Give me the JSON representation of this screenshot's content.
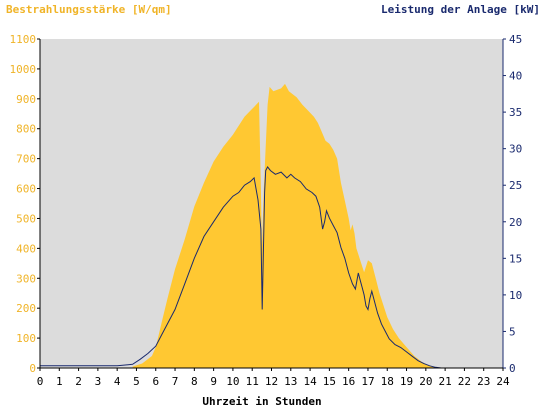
{
  "chart_data": {
    "type": "area",
    "left_axis_title": "Bestrahlungsstärke [W/qm]",
    "right_axis_title": "Leistung der Anlage [kW]",
    "xlabel": "Uhrzeit in Stunden",
    "xlim": [
      0,
      24
    ],
    "ylim_left": [
      0,
      1100
    ],
    "ylim_right": [
      0,
      45
    ],
    "x_ticks": [
      "0",
      "1",
      "2",
      "3",
      "4",
      "5",
      "6",
      "7",
      "8",
      "9",
      "10",
      "11",
      "12",
      "13",
      "14",
      "15",
      "16",
      "17",
      "18",
      "19",
      "20",
      "21",
      "22",
      "23",
      "24"
    ],
    "left_ticks": [
      "0",
      "100",
      "200",
      "300",
      "400",
      "500",
      "600",
      "700",
      "800",
      "900",
      "1000",
      "1100"
    ],
    "right_ticks": [
      "0",
      "5",
      "10",
      "15",
      "20",
      "25",
      "30",
      "35",
      "40",
      "45"
    ],
    "grid": false,
    "colors": {
      "plot_bg": "#dcdcdc",
      "irradiance_fill": "#ffc832",
      "power_line": "#1a2a6e",
      "left_axis": "#f0b428",
      "right_axis": "#1a2a6e"
    },
    "series": [
      {
        "axis": "left",
        "style": "area",
        "x": [
          4.8,
          5.3,
          5.8,
          6.0,
          6.3,
          6.6,
          7.0,
          7.5,
          8.0,
          8.5,
          9.0,
          9.5,
          10.0,
          10.3,
          10.6,
          10.9,
          11.2,
          11.35,
          11.45,
          11.5,
          11.6,
          11.8,
          11.9,
          12.1,
          12.3,
          12.5,
          12.7,
          12.9,
          13.1,
          13.3,
          13.6,
          13.9,
          14.2,
          14.4,
          14.6,
          14.8,
          15.0,
          15.2,
          15.4,
          15.6,
          15.8,
          16.0,
          16.1,
          16.2,
          16.3,
          16.4,
          16.5,
          16.6,
          16.8,
          17.0,
          17.2,
          17.4,
          17.6,
          17.8,
          18.0,
          18.3,
          18.6,
          19.0,
          19.4,
          19.8,
          20.1,
          20.4,
          20.7
        ],
        "y": [
          5,
          15,
          40,
          70,
          150,
          230,
          330,
          430,
          540,
          620,
          690,
          740,
          780,
          810,
          840,
          860,
          880,
          890,
          600,
          400,
          600,
          880,
          940,
          925,
          930,
          935,
          950,
          925,
          915,
          905,
          880,
          860,
          840,
          820,
          790,
          760,
          750,
          730,
          700,
          620,
          560,
          500,
          460,
          480,
          450,
          400,
          380,
          360,
          320,
          360,
          350,
          300,
          250,
          210,
          170,
          130,
          100,
          70,
          40,
          20,
          10,
          3,
          0
        ]
      },
      {
        "axis": "right",
        "style": "line",
        "x": [
          0.0,
          4.0,
          4.8,
          5.2,
          5.6,
          6.0,
          6.3,
          6.6,
          7.0,
          7.5,
          8.0,
          8.5,
          9.0,
          9.5,
          10.0,
          10.3,
          10.6,
          10.9,
          11.1,
          11.3,
          11.45,
          11.52,
          11.58,
          11.64,
          11.7,
          11.8,
          11.95,
          12.2,
          12.5,
          12.8,
          13.0,
          13.2,
          13.5,
          13.8,
          14.1,
          14.3,
          14.5,
          14.65,
          14.75,
          14.85,
          15.0,
          15.2,
          15.4,
          15.6,
          15.8,
          16.0,
          16.2,
          16.35,
          16.5,
          16.6,
          16.7,
          16.8,
          16.9,
          17.0,
          17.1,
          17.2,
          17.35,
          17.5,
          17.7,
          17.9,
          18.1,
          18.4,
          18.7,
          19.0,
          19.3,
          19.6,
          19.9,
          20.2,
          20.5,
          20.8,
          24.0
        ],
        "y": [
          0.3,
          0.3,
          0.5,
          1.2,
          2.0,
          3.0,
          4.5,
          6.0,
          8.0,
          11.5,
          15.0,
          18.0,
          20.0,
          22.0,
          23.5,
          24.0,
          25.0,
          25.5,
          26.0,
          23.0,
          19.0,
          8.0,
          16.0,
          24.0,
          27.0,
          27.5,
          27.0,
          26.5,
          26.8,
          26.0,
          26.5,
          26.0,
          25.5,
          24.5,
          24.0,
          23.5,
          22.0,
          19.0,
          20.0,
          21.5,
          20.5,
          19.5,
          18.5,
          16.5,
          15.0,
          13.0,
          11.5,
          10.8,
          13.0,
          12.0,
          11.0,
          10.0,
          8.5,
          8.0,
          9.5,
          10.5,
          9.0,
          7.5,
          6.0,
          5.0,
          4.0,
          3.2,
          2.8,
          2.2,
          1.6,
          1.0,
          0.6,
          0.3,
          0.1,
          0.0,
          0.0
        ]
      }
    ]
  }
}
